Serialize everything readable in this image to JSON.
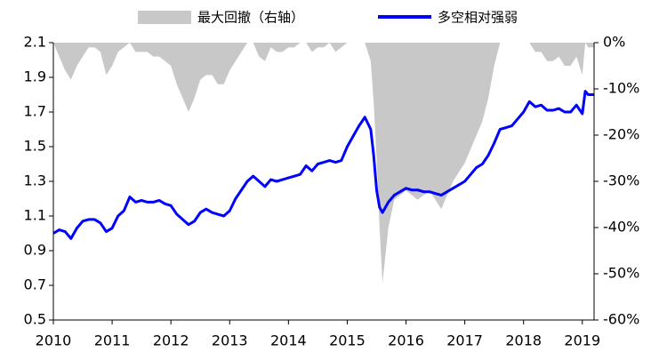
{
  "chart_data": {
    "type": "line",
    "x": [
      2010.0,
      2010.1,
      2010.2,
      2010.3,
      2010.4,
      2010.5,
      2010.6,
      2010.7,
      2010.8,
      2010.9,
      2011.0,
      2011.1,
      2011.2,
      2011.3,
      2011.4,
      2011.5,
      2011.6,
      2011.7,
      2011.8,
      2011.9,
      2012.0,
      2012.1,
      2012.2,
      2012.3,
      2012.4,
      2012.5,
      2012.6,
      2012.7,
      2012.8,
      2012.9,
      2013.0,
      2013.1,
      2013.2,
      2013.3,
      2013.4,
      2013.5,
      2013.6,
      2013.7,
      2013.8,
      2013.9,
      2014.0,
      2014.1,
      2014.2,
      2014.3,
      2014.4,
      2014.5,
      2014.6,
      2014.7,
      2014.8,
      2014.9,
      2015.0,
      2015.1,
      2015.2,
      2015.3,
      2015.4,
      2015.45,
      2015.5,
      2015.55,
      2015.6,
      2015.7,
      2015.8,
      2015.9,
      2016.0,
      2016.1,
      2016.2,
      2016.3,
      2016.4,
      2016.5,
      2016.6,
      2016.7,
      2016.8,
      2016.9,
      2017.0,
      2017.1,
      2017.2,
      2017.3,
      2017.4,
      2017.5,
      2017.6,
      2017.7,
      2017.8,
      2017.9,
      2018.0,
      2018.1,
      2018.2,
      2018.3,
      2018.4,
      2018.5,
      2018.6,
      2018.7,
      2018.8,
      2018.9,
      2019.0,
      2019.05,
      2019.1,
      2019.2
    ],
    "series": [
      {
        "name": "最大回撤（右轴）",
        "type": "area",
        "axis": "y2",
        "color": "#c8c8c8",
        "values": [
          0,
          -3,
          -6,
          -8,
          -5,
          -3,
          -1,
          -1,
          -2,
          -7,
          -5,
          -2,
          -1,
          0,
          -2,
          -2,
          -2,
          -3,
          -3,
          -4,
          -5,
          -9,
          -12,
          -15,
          -12,
          -8,
          -7,
          -7,
          -9,
          -9,
          -6,
          -4,
          -2,
          0,
          0,
          -3,
          -4,
          -1,
          -2,
          -2,
          -1,
          -1,
          0,
          0,
          -2,
          -1,
          -1,
          0,
          -2,
          -1,
          0,
          0,
          0,
          0,
          -4,
          -13,
          -25,
          -40,
          -52,
          -40,
          -34,
          -33,
          -32,
          -33,
          -34,
          -33,
          -32,
          -34,
          -36,
          -33,
          -30,
          -28,
          -26,
          -23,
          -20,
          -17,
          -12,
          -5,
          0,
          0,
          0,
          0,
          0,
          0,
          -2,
          -2,
          -4,
          -4,
          -3,
          -5,
          -5,
          -3,
          -7,
          0,
          -1,
          -1
        ]
      },
      {
        "name": "多空相对强弱",
        "type": "line",
        "color": "#0000ff",
        "values": [
          1.0,
          1.02,
          1.01,
          0.97,
          1.03,
          1.07,
          1.08,
          1.08,
          1.06,
          1.01,
          1.03,
          1.1,
          1.13,
          1.21,
          1.18,
          1.19,
          1.18,
          1.18,
          1.19,
          1.17,
          1.16,
          1.11,
          1.08,
          1.05,
          1.07,
          1.12,
          1.14,
          1.12,
          1.11,
          1.1,
          1.13,
          1.2,
          1.25,
          1.3,
          1.33,
          1.3,
          1.27,
          1.31,
          1.3,
          1.31,
          1.32,
          1.33,
          1.34,
          1.39,
          1.36,
          1.4,
          1.41,
          1.42,
          1.41,
          1.42,
          1.5,
          1.56,
          1.62,
          1.67,
          1.6,
          1.45,
          1.25,
          1.15,
          1.12,
          1.18,
          1.22,
          1.24,
          1.26,
          1.25,
          1.25,
          1.24,
          1.24,
          1.23,
          1.22,
          1.24,
          1.26,
          1.28,
          1.3,
          1.34,
          1.38,
          1.4,
          1.45,
          1.52,
          1.6,
          1.61,
          1.62,
          1.66,
          1.7,
          1.76,
          1.73,
          1.74,
          1.71,
          1.71,
          1.72,
          1.7,
          1.7,
          1.74,
          1.69,
          1.82,
          1.8,
          1.8
        ]
      }
    ],
    "xlim": [
      2010,
      2019.2
    ],
    "xticks": [
      2010,
      2011,
      2012,
      2013,
      2014,
      2015,
      2016,
      2017,
      2018,
      2019
    ],
    "ylim": [
      0.5,
      2.1
    ],
    "yticks": [
      2.1,
      1.9,
      1.7,
      1.5,
      1.3,
      1.1,
      0.9,
      0.7,
      0.5
    ],
    "y2lim": [
      -60,
      0
    ],
    "y2ticks": [
      {
        "value": 0,
        "label": "0%"
      },
      {
        "value": -10,
        "label": "-10%"
      },
      {
        "value": -20,
        "label": "-20%"
      },
      {
        "value": -30,
        "label": "-30%"
      },
      {
        "value": -40,
        "label": "-40%"
      },
      {
        "value": -50,
        "label": "-50%"
      },
      {
        "value": -60,
        "label": "-60%"
      }
    ],
    "legend": "top"
  }
}
